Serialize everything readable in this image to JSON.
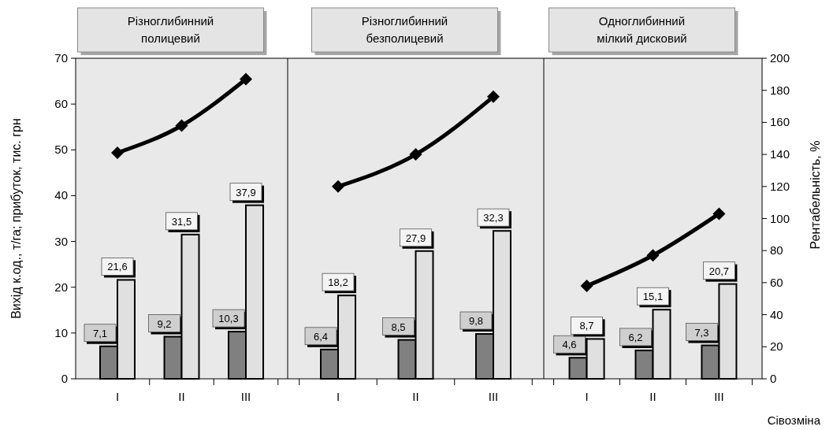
{
  "chart_data": [
    {
      "type": "bar",
      "title": "Різноглибинний полицевий",
      "categories": [
        "I",
        "II",
        "III"
      ],
      "ylim": [
        0,
        70
      ],
      "yticks": [
        0,
        10,
        20,
        30,
        40,
        50,
        60,
        70
      ],
      "y2lim": [
        0,
        200
      ],
      "ylabel": "Вихід к.од., т/га; прибуток,  тис. грн",
      "grid": false,
      "series": [
        {
          "color": "#808080",
          "values": [
            7.1,
            9.2,
            10.3
          ],
          "value_labels": [
            "7,1",
            "9,2",
            "10,3"
          ]
        },
        {
          "color": "#e0e0e0",
          "values": [
            21.6,
            31.5,
            37.9
          ],
          "value_labels": [
            "21,6",
            "31,5",
            "37,9"
          ]
        },
        {
          "type": "line",
          "axis": "y2",
          "color": "#000000",
          "marker": "diamond",
          "line_style": "solid",
          "values": [
            141,
            158,
            187
          ]
        }
      ]
    },
    {
      "type": "bar",
      "title": "Різноглибинний безполицевий",
      "categories": [
        "I",
        "II",
        "III"
      ],
      "ylim": [
        0,
        70
      ],
      "y2lim": [
        0,
        200
      ],
      "tick_labels": "x",
      "grid": false,
      "series": [
        {
          "color": "#808080",
          "values": [
            6.4,
            8.5,
            9.8
          ],
          "value_labels": [
            "6,4",
            "8,5",
            "9,8"
          ]
        },
        {
          "color": "#e0e0e0",
          "values": [
            18.2,
            27.9,
            32.3
          ],
          "value_labels": [
            "18,2",
            "27,9",
            "32,3"
          ]
        },
        {
          "type": "line",
          "axis": "y2",
          "color": "#000000",
          "marker": "diamond",
          "line_style": "solid",
          "values": [
            120,
            140,
            176
          ]
        }
      ]
    },
    {
      "type": "bar",
      "title": "Одноглибинний мілкий дисковий",
      "categories": [
        "I",
        "II",
        "III"
      ],
      "ylim": [
        0,
        70
      ],
      "y2lim": [
        0,
        200
      ],
      "y2ticks": [
        0,
        20,
        40,
        60,
        80,
        100,
        120,
        140,
        160,
        180,
        200
      ],
      "xlabel": "Сівозміна",
      "y2label": "Рентабельність, %",
      "grid": false,
      "series": [
        {
          "color": "#808080",
          "values": [
            4.6,
            6.2,
            7.3
          ],
          "value_labels": [
            "4,6",
            "6,2",
            "7,3"
          ]
        },
        {
          "color": "#e0e0e0",
          "values": [
            8.7,
            15.1,
            20.7
          ],
          "value_labels": [
            "8,7",
            "15,1",
            "20,7"
          ]
        },
        {
          "type": "line",
          "axis": "y2",
          "color": "#000000",
          "marker": "diamond",
          "line_style": "solid",
          "values": [
            58,
            77,
            103
          ]
        }
      ]
    }
  ]
}
